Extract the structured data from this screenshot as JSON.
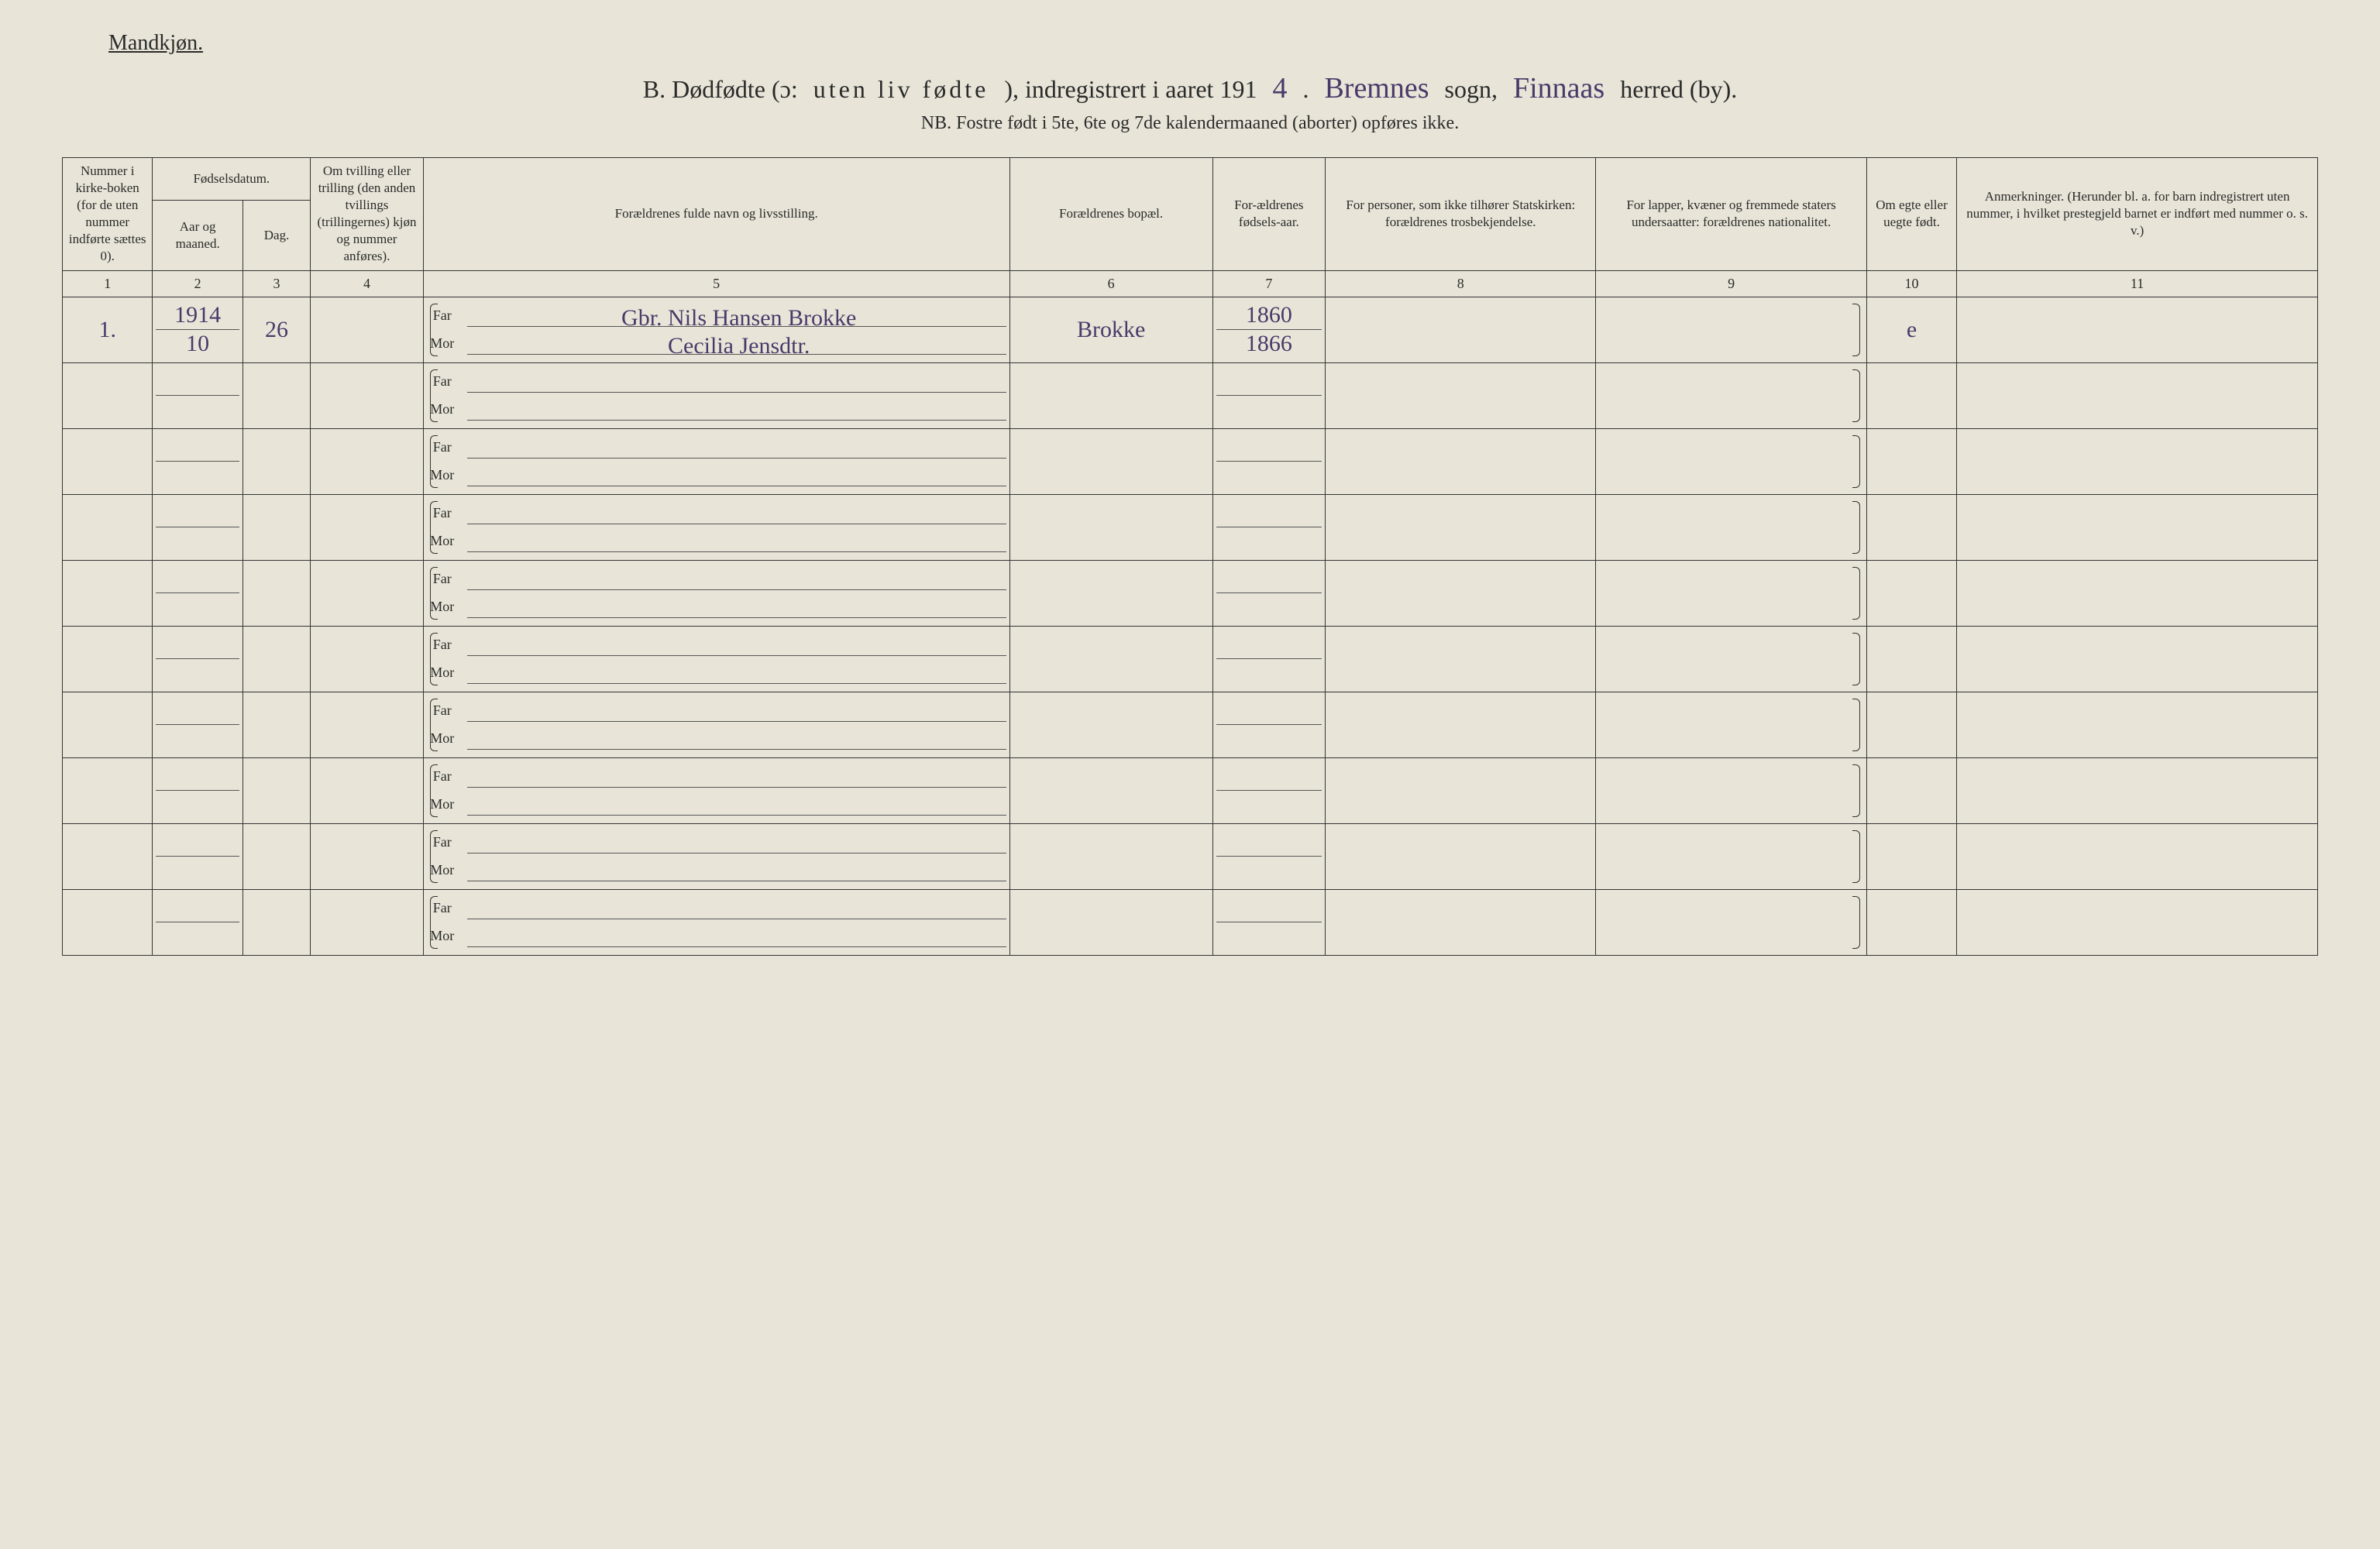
{
  "header_label": "Mandkjøn.",
  "title": {
    "prefix": "B.  Dødfødte (ɔ: ",
    "spaced": "uten liv fødte",
    "mid": "), indregistrert i aaret 191",
    "year_fill": "4",
    "dot": " .",
    "sogn_fill": "Bremnes",
    "sogn_label": "sogn,",
    "herred_fill": "Finnaas",
    "herred_label": "herred (by)."
  },
  "subtitle": "NB.  Fostre født i 5te, 6te og 7de kalendermaaned (aborter) opføres ikke.",
  "columns": {
    "c1": "Nummer i kirke-boken (for de uten nummer indførte sættes 0).",
    "c2_top": "Fødselsdatum.",
    "c2a": "Aar og maaned.",
    "c2b": "Dag.",
    "c4": "Om tvilling eller trilling (den anden tvillings (trillingernes) kjøn og nummer anføres).",
    "c5": "Forældrenes fulde navn og livsstilling.",
    "c6": "Forældrenes bopæl.",
    "c7": "For-ældrenes fødsels-aar.",
    "c8": "For personer, som ikke tilhører Statskirken: forældrenes trosbekjendelse.",
    "c9": "For lapper, kvæner og fremmede staters undersaatter: forældrenes nationalitet.",
    "c10": "Om egte eller uegte født.",
    "c11": "Anmerkninger. (Herunder bl. a. for barn indregistrert uten nummer, i hvilket prestegjeld barnet er indført med nummer o. s. v.)"
  },
  "colnums": [
    "1",
    "2",
    "3",
    "4",
    "5",
    "6",
    "7",
    "8",
    "9",
    "10",
    "11"
  ],
  "far_label": "Far",
  "mor_label": "Mor",
  "entry1": {
    "num": "1.",
    "year": "1914",
    "month": "10",
    "day": "26",
    "far": "Gbr. Nils Hansen Brokke",
    "mor": "Cecilia Jensdtr.",
    "bopael": "Brokke",
    "far_year": "1860",
    "mor_year": "1866",
    "egte": "e"
  },
  "style": {
    "background_color": "#e8e5d8",
    "text_color": "#2a2a2a",
    "handwriting_color": "#4a3a6a",
    "border_color": "#333333",
    "title_fontsize": 32,
    "header_fontsize": 17,
    "colnum_fontsize": 14,
    "handwriting_fontsize": 30,
    "num_body_rows": 10
  }
}
